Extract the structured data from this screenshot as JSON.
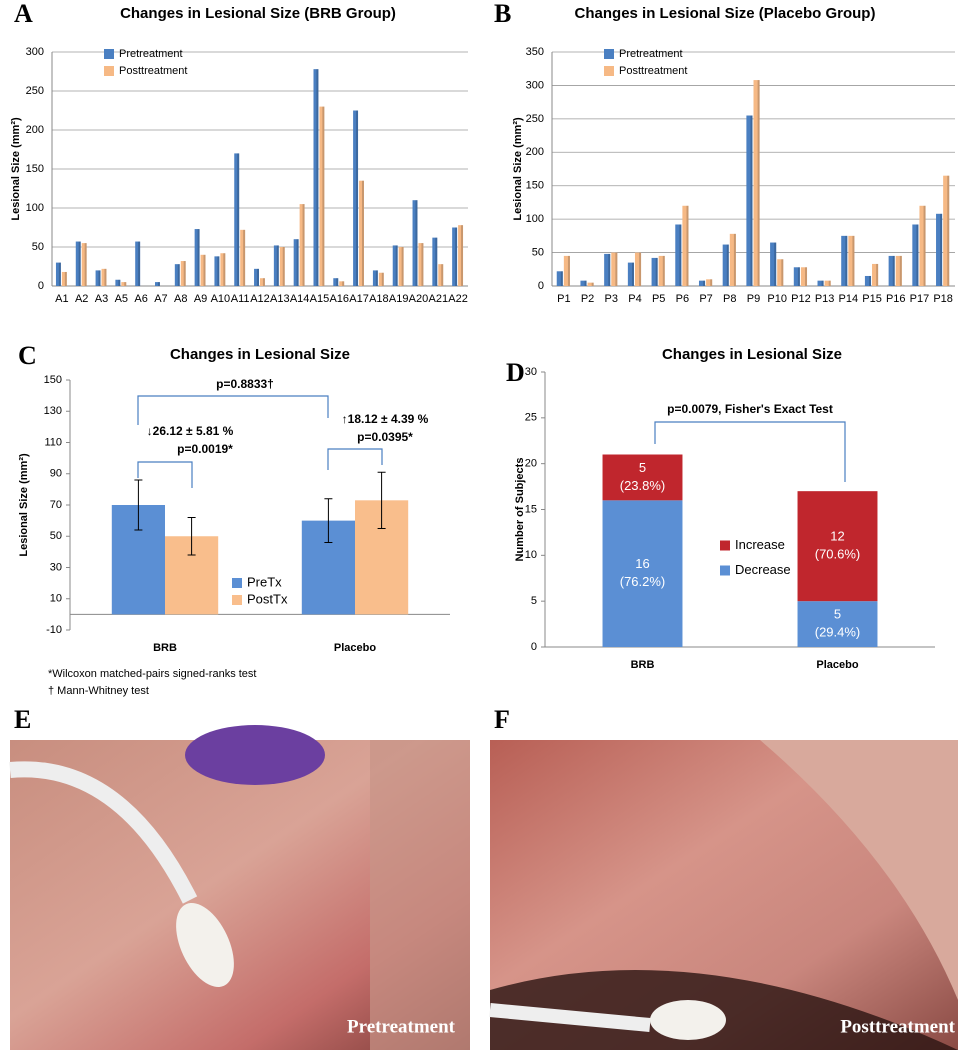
{
  "chart_data": [
    {
      "type": "bar",
      "panel": "A",
      "title": "Changes in Lesional Size (BRB Group)",
      "y_label": "Lesional Size (mm²)",
      "categories": [
        "A1",
        "A2",
        "A3",
        "A5",
        "A6",
        "A7",
        "A8",
        "A9",
        "A10",
        "A11",
        "A12",
        "A13",
        "A14",
        "A15",
        "A16",
        "A17",
        "A18",
        "A19",
        "A20",
        "A21",
        "A22"
      ],
      "series": [
        {
          "name": "Pretreatment",
          "color": "#4a7fc1",
          "values": [
            30,
            57,
            20,
            8,
            57,
            5,
            28,
            73,
            38,
            170,
            22,
            52,
            60,
            278,
            10,
            225,
            20,
            52,
            110,
            62,
            75
          ]
        },
        {
          "name": "Posttreatment",
          "color": "#f6b985",
          "values": [
            18,
            55,
            22,
            5,
            0,
            0,
            32,
            40,
            42,
            72,
            10,
            50,
            105,
            230,
            6,
            135,
            17,
            50,
            55,
            28,
            78
          ]
        }
      ],
      "ylim": [
        0,
        300
      ],
      "yticks": [
        0,
        50,
        100,
        150,
        200,
        250,
        300
      ],
      "grid": true,
      "legend": "upper-left"
    },
    {
      "type": "bar",
      "panel": "B",
      "title": "Changes in Lesional Size (Placebo Group)",
      "y_label": "Lesional Size (mm²)",
      "categories": [
        "P1",
        "P2",
        "P3",
        "P4",
        "P5",
        "P6",
        "P7",
        "P8",
        "P9",
        "P10",
        "P12",
        "P13",
        "P14",
        "P15",
        "P16",
        "P17",
        "P18"
      ],
      "series": [
        {
          "name": "Pretreatment",
          "color": "#4a7fc1",
          "values": [
            22,
            8,
            48,
            35,
            42,
            92,
            8,
            62,
            255,
            65,
            28,
            8,
            75,
            15,
            45,
            92,
            108
          ]
        },
        {
          "name": "Posttreatment",
          "color": "#f6b985",
          "values": [
            45,
            5,
            50,
            50,
            45,
            120,
            10,
            78,
            308,
            40,
            28,
            8,
            75,
            33,
            45,
            120,
            165
          ]
        }
      ],
      "ylim": [
        0,
        350
      ],
      "yticks": [
        0,
        50,
        100,
        150,
        200,
        250,
        300,
        350
      ],
      "grid": true,
      "legend": "upper-left"
    },
    {
      "type": "bar",
      "panel": "C",
      "title": "Changes in Lesional Size",
      "y_label": "Lesional Size (mm²)",
      "categories": [
        "BRB",
        "Placebo"
      ],
      "series": [
        {
          "name": "PreTx",
          "color": "#5b8fd4",
          "values": [
            70,
            60
          ],
          "errors": [
            16,
            14
          ]
        },
        {
          "name": "PostTx",
          "color": "#f9be8c",
          "values": [
            50,
            73
          ],
          "errors": [
            12,
            18
          ]
        }
      ],
      "ylim": [
        -10,
        150
      ],
      "yticks": [
        -10,
        10,
        30,
        50,
        70,
        90,
        110,
        130,
        150
      ],
      "grid": false,
      "legend": "lower-center",
      "annotations": [
        "p=0.8833†",
        "↓26.12 ± 5.81 %",
        "p=0.0019*",
        "↑18.12 ± 4.39 %",
        "p=0.0395*"
      ],
      "footnotes": [
        "*Wilcoxon matched-pairs signed-ranks test",
        "† Mann-Whitney  test"
      ]
    },
    {
      "type": "bar",
      "stacked": true,
      "panel": "D",
      "title": "Changes in Lesional Size",
      "y_label": "Number of Subjects",
      "categories": [
        "BRB",
        "Placebo"
      ],
      "series": [
        {
          "name": "Decrease",
          "color": "#5b8fd4",
          "values": [
            16,
            5
          ],
          "percent_labels": [
            "(76.2%)",
            "(29.4%)"
          ]
        },
        {
          "name": "Increase",
          "color": "#c0262d",
          "values": [
            5,
            12
          ],
          "percent_labels": [
            "(23.8%)",
            "(70.6%)"
          ]
        }
      ],
      "ylim": [
        0,
        30
      ],
      "yticks": [
        0,
        5,
        10,
        15,
        20,
        25,
        30
      ],
      "grid": false,
      "legend": "center",
      "annotations": [
        "p=0.0079, Fisher's Exact Test"
      ]
    }
  ],
  "photos": [
    {
      "panel": "E",
      "caption": "Pretreatment"
    },
    {
      "panel": "F",
      "caption": "Posttreatment"
    }
  ]
}
